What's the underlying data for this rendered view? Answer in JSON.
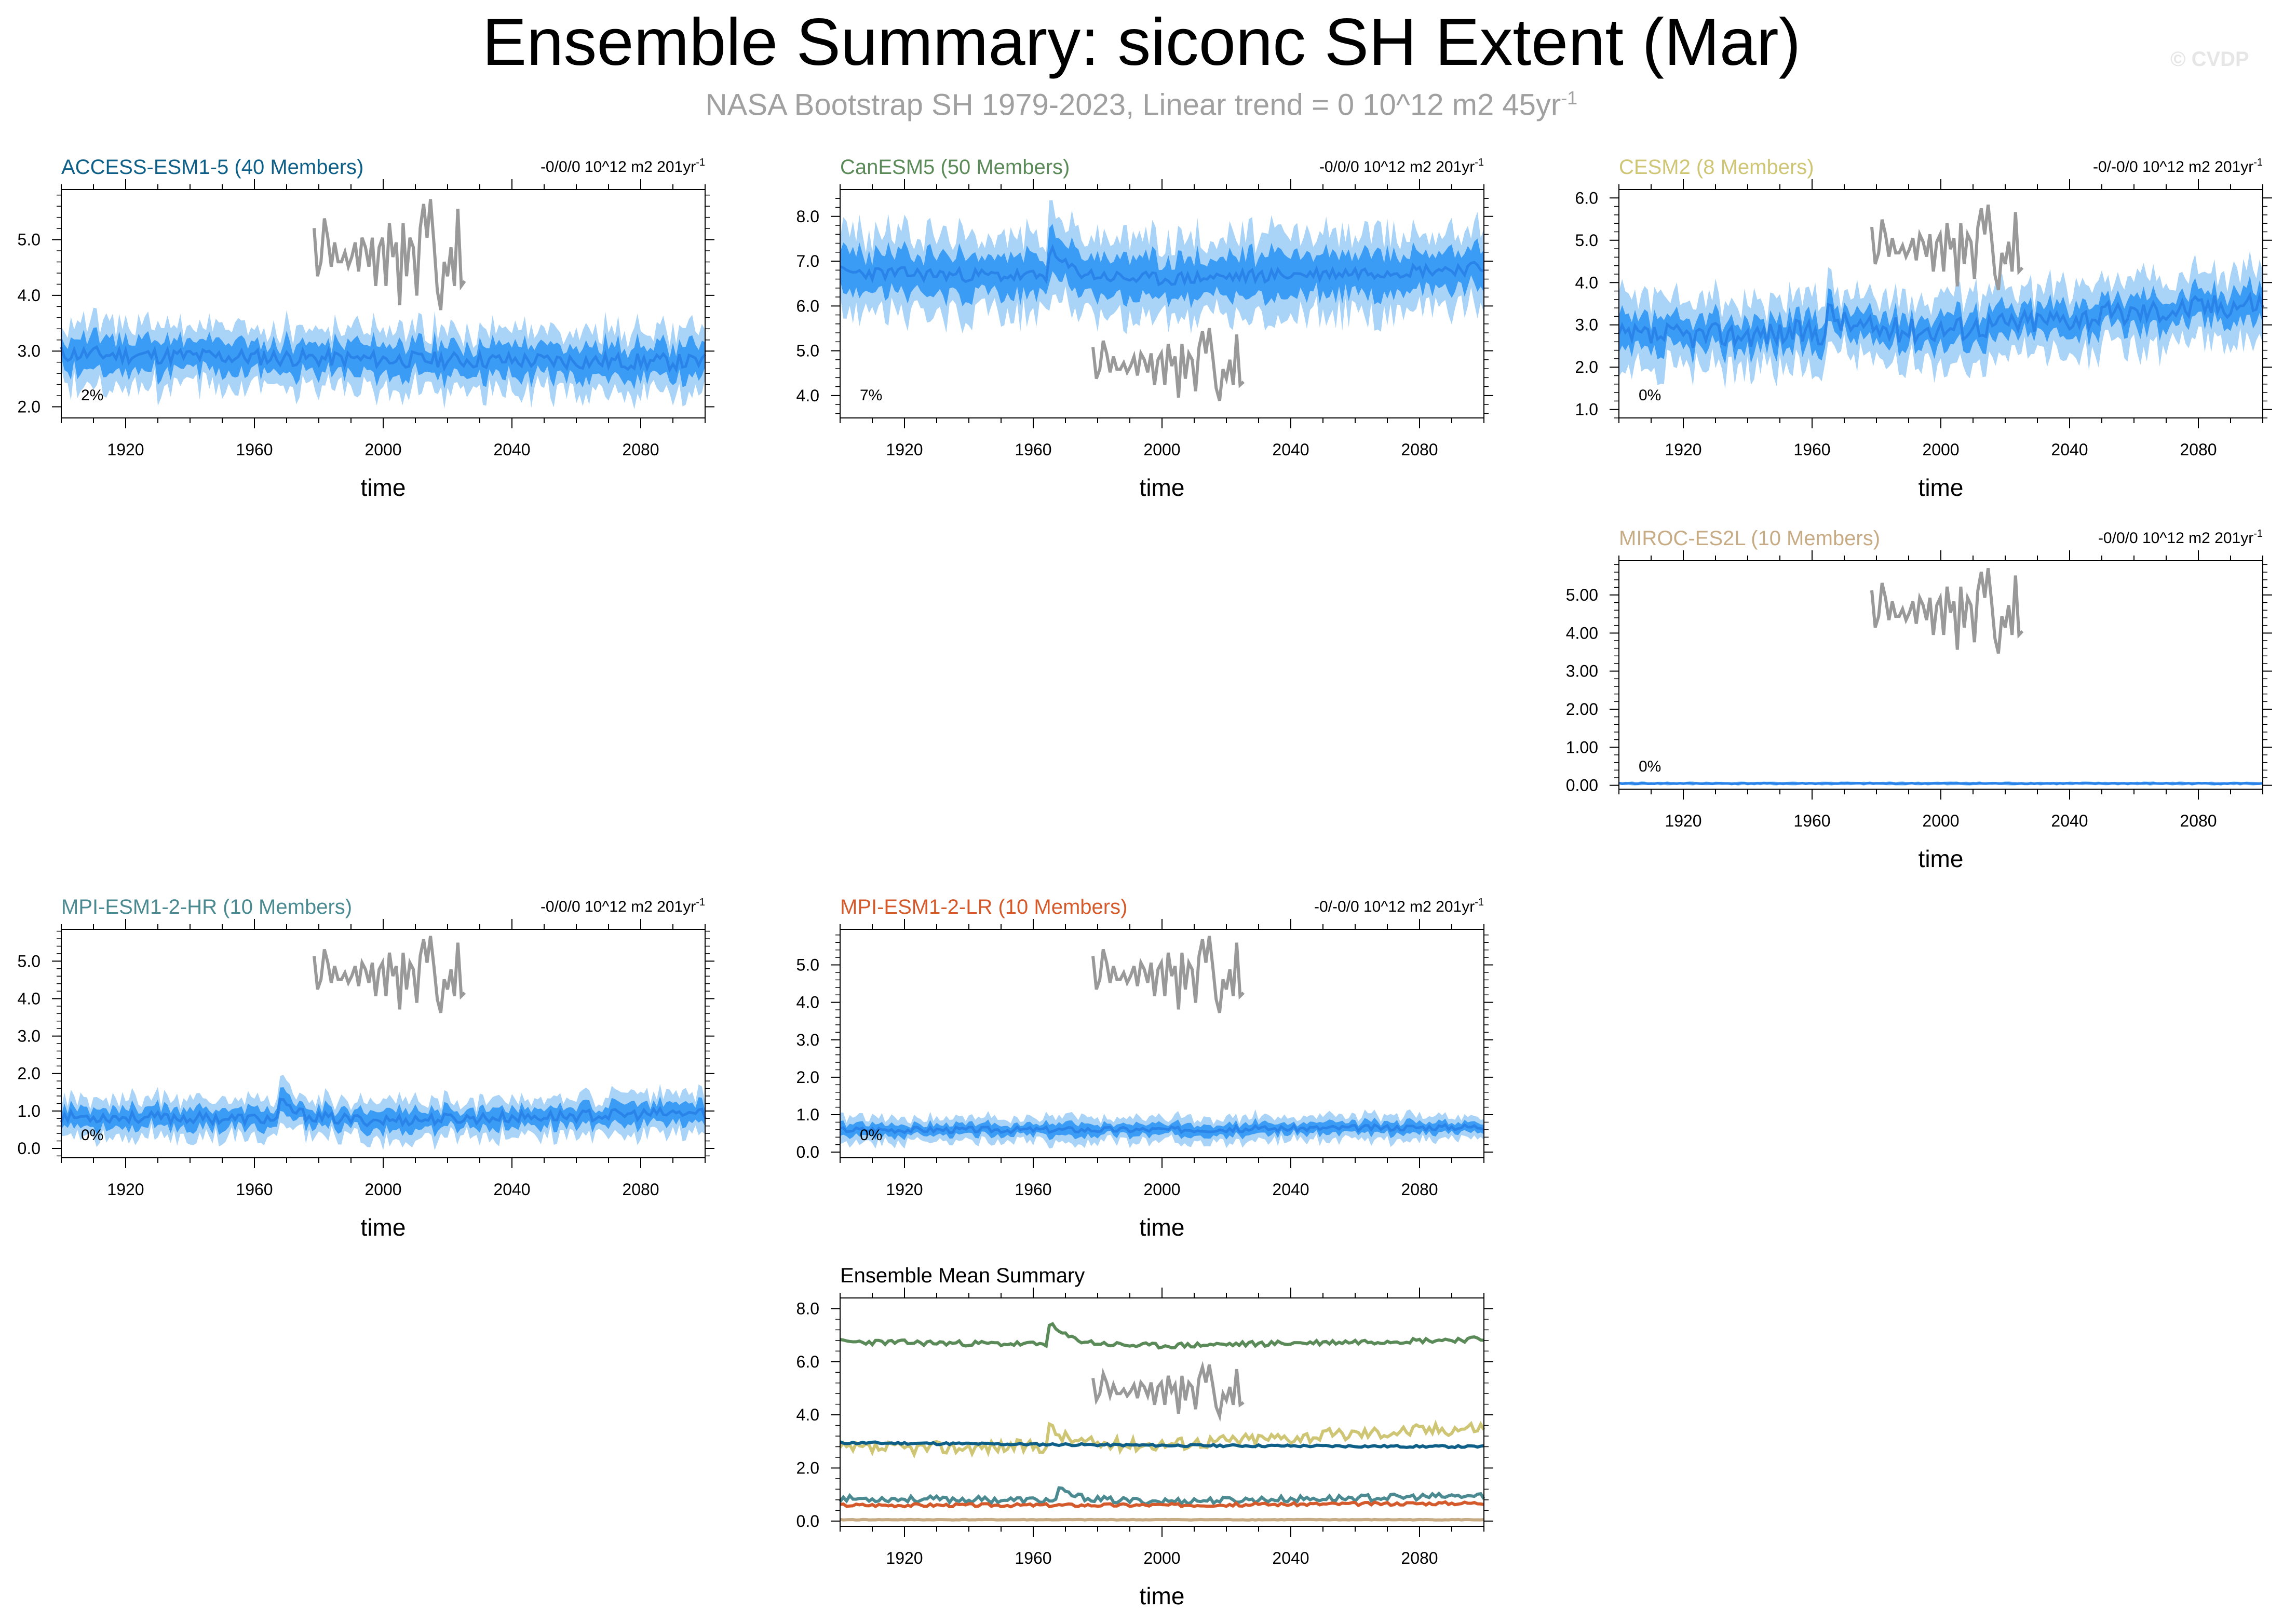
{
  "title": "Ensemble Summary: siconc SH Extent (Mar)",
  "subtitle": "NASA Bootstrap SH 1979-2023, Linear trend = 0 10^12 m2 45yr",
  "subtitle_sup": "-1",
  "copyright": "© CVDP",
  "colors": {
    "outer_band": "#a9d3f7",
    "inner_band": "#3a9cf5",
    "mean_line": "#2a83e8",
    "obs_line": "#999999",
    "access": "#0d5f87",
    "canesm": "#5a8a57",
    "cesm": "#cfc675",
    "miroc": "#c6ab84",
    "mpi_hr": "#4a8a90",
    "mpi_lr": "#d45a2c"
  },
  "chart_data": [
    {
      "type": "area",
      "title": "ACCESS-ESM1-5 (40 Members)",
      "title_color": "#0d5f87",
      "trend_label": "-0/0/0 10^12 m2 201yr",
      "trend_sup": "-1",
      "pct_label": "2%",
      "xlabel": "time",
      "xticks": [
        1920,
        1960,
        2000,
        2040,
        2080
      ],
      "xlim": [
        1900,
        2100
      ],
      "yticks": [
        2.0,
        3.0,
        4.0,
        5.0
      ],
      "ytick_labels": [
        "2.0",
        "3.0",
        "4.0",
        "5.0"
      ],
      "ylim": [
        1.8,
        5.9
      ],
      "series": [
        {
          "name": "ensemble mean",
          "start": 2.95,
          "mid": 2.85,
          "end": 2.8,
          "inner_halfwidth": 0.28,
          "outer_halfwidth": 0.55,
          "noise": 0.15,
          "seed": 11,
          "spike_year": 1965,
          "spike": 0.0
        }
      ]
    },
    {
      "type": "area",
      "title": "CanESM5 (50 Members)",
      "title_color": "#5a8a57",
      "trend_label": "-0/0/0 10^12 m2 201yr",
      "trend_sup": "-1",
      "pct_label": "7%",
      "xlabel": "time",
      "xticks": [
        1920,
        1960,
        2000,
        2040,
        2080
      ],
      "xlim": [
        1900,
        2100
      ],
      "yticks": [
        4.0,
        5.0,
        6.0,
        7.0,
        8.0
      ],
      "ytick_labels": [
        "4.0",
        "5.0",
        "6.0",
        "7.0",
        "8.0"
      ],
      "ylim": [
        3.5,
        8.6
      ],
      "series": [
        {
          "name": "ensemble mean",
          "start": 6.75,
          "mid": 6.6,
          "end": 6.85,
          "inner_halfwidth": 0.45,
          "outer_halfwidth": 0.9,
          "noise": 0.15,
          "seed": 23,
          "spike_year": 1965,
          "spike": 0.6
        }
      ]
    },
    {
      "type": "area",
      "title": "CESM2 (8 Members)",
      "title_color": "#cfc675",
      "trend_label": "-0/-0/0 10^12 m2 201yr",
      "trend_sup": "-1",
      "pct_label": "0%",
      "xlabel": "time",
      "xticks": [
        1920,
        1960,
        2000,
        2040,
        2080
      ],
      "xlim": [
        1900,
        2100
      ],
      "yticks": [
        1.0,
        2.0,
        3.0,
        4.0,
        5.0,
        6.0
      ],
      "ytick_labels": [
        "1.0",
        "2.0",
        "3.0",
        "4.0",
        "5.0",
        "6.0"
      ],
      "ylim": [
        0.8,
        6.2
      ],
      "series": [
        {
          "name": "ensemble mean",
          "start": 2.7,
          "mid": 2.9,
          "end": 3.55,
          "inner_halfwidth": 0.35,
          "outer_halfwidth": 0.8,
          "noise": 0.3,
          "seed": 37,
          "spike_year": 1965,
          "spike": 0.5
        }
      ]
    },
    {
      "type": "area",
      "title": "MIROC-ES2L (10 Members)",
      "title_color": "#c6ab84",
      "trend_label": "-0/0/0 10^12 m2 201yr",
      "trend_sup": "-1",
      "pct_label": "0%",
      "xlabel": "time",
      "xticks": [
        1920,
        1960,
        2000,
        2040,
        2080
      ],
      "xlim": [
        1900,
        2100
      ],
      "yticks": [
        0.0,
        1.0,
        2.0,
        3.0,
        4.0,
        5.0
      ],
      "ytick_labels": [
        "0.00",
        "1.00",
        "2.00",
        "3.00",
        "4.00",
        "5.00"
      ],
      "ylim": [
        -0.1,
        5.9
      ],
      "series": [
        {
          "name": "ensemble mean",
          "start": 0.05,
          "mid": 0.05,
          "end": 0.05,
          "inner_halfwidth": 0.02,
          "outer_halfwidth": 0.04,
          "noise": 0.01,
          "seed": 41,
          "spike_year": 1965,
          "spike": 0.0
        }
      ]
    },
    {
      "type": "area",
      "title": "MPI-ESM1-2-HR (10 Members)",
      "title_color": "#4a8a90",
      "trend_label": "-0/0/0 10^12 m2 201yr",
      "trend_sup": "-1",
      "pct_label": "0%",
      "xlabel": "time",
      "xticks": [
        1920,
        1960,
        2000,
        2040,
        2080
      ],
      "xlim": [
        1900,
        2100
      ],
      "yticks": [
        0.0,
        1.0,
        2.0,
        3.0,
        4.0,
        5.0
      ],
      "ytick_labels": [
        "0.0",
        "1.0",
        "2.0",
        "3.0",
        "4.0",
        "5.0"
      ],
      "ylim": [
        -0.25,
        5.85
      ],
      "series": [
        {
          "name": "ensemble mean",
          "start": 0.85,
          "mid": 0.75,
          "end": 0.95,
          "inner_halfwidth": 0.25,
          "outer_halfwidth": 0.5,
          "noise": 0.15,
          "seed": 53,
          "spike_year": 1968,
          "spike": 0.45
        }
      ]
    },
    {
      "type": "area",
      "title": "MPI-ESM1-2-LR (10 Members)",
      "title_color": "#d45a2c",
      "trend_label": "-0/-0/0 10^12 m2 201yr",
      "trend_sup": "-1",
      "pct_label": "0%",
      "xlabel": "time",
      "xticks": [
        1920,
        1960,
        2000,
        2040,
        2080
      ],
      "xlim": [
        1900,
        2100
      ],
      "yticks": [
        0.0,
        1.0,
        2.0,
        3.0,
        4.0,
        5.0
      ],
      "ytick_labels": [
        "0.0",
        "1.0",
        "2.0",
        "3.0",
        "4.0",
        "5.0"
      ],
      "ylim": [
        -0.15,
        5.95
      ],
      "series": [
        {
          "name": "ensemble mean",
          "start": 0.6,
          "mid": 0.6,
          "end": 0.68,
          "inner_halfwidth": 0.15,
          "outer_halfwidth": 0.32,
          "noise": 0.08,
          "seed": 67,
          "spike_year": 1965,
          "spike": 0.0
        }
      ]
    },
    {
      "type": "line",
      "title": "Ensemble Mean Summary",
      "title_color": "#000000",
      "xlabel": "time",
      "xticks": [
        1920,
        1960,
        2000,
        2040,
        2080
      ],
      "xlim": [
        1900,
        2100
      ],
      "yticks": [
        0.0,
        2.0,
        4.0,
        6.0,
        8.0
      ],
      "ytick_labels": [
        "0.0",
        "2.0",
        "4.0",
        "6.0",
        "8.0"
      ],
      "ylim": [
        -0.2,
        8.4
      ],
      "series": [
        {
          "name": "CanESM5",
          "color": "#5a8a57",
          "start": 6.75,
          "mid": 6.6,
          "end": 6.85,
          "noise": 0.1,
          "seed": 23,
          "spike_year": 1965,
          "spike": 0.8
        },
        {
          "name": "CESM2",
          "color": "#cfc675",
          "start": 2.7,
          "mid": 2.9,
          "end": 3.55,
          "noise": 0.25,
          "seed": 37,
          "spike_year": 1965,
          "spike": 0.7
        },
        {
          "name": "ACCESS-ESM1-5",
          "color": "#0d5f87",
          "start": 2.95,
          "mid": 2.85,
          "end": 2.8,
          "noise": 0.04,
          "seed": 11,
          "spike_year": 1965,
          "spike": 0.0
        },
        {
          "name": "MPI-ESM1-2-HR",
          "color": "#4a8a90",
          "start": 0.85,
          "mid": 0.75,
          "end": 0.95,
          "noise": 0.12,
          "seed": 53,
          "spike_year": 1968,
          "spike": 0.4
        },
        {
          "name": "MPI-ESM1-2-LR",
          "color": "#d45a2c",
          "start": 0.6,
          "mid": 0.6,
          "end": 0.68,
          "noise": 0.06,
          "seed": 67,
          "spike_year": 1965,
          "spike": 0.0
        },
        {
          "name": "MIROC-ES2L",
          "color": "#c6ab84",
          "start": 0.05,
          "mid": 0.05,
          "end": 0.05,
          "noise": 0.01,
          "seed": 41,
          "spike_year": 1965,
          "spike": 0.0
        }
      ]
    }
  ],
  "observation": {
    "name": "NASA Bootstrap SH",
    "years": [
      1979,
      1980,
      1981,
      1982,
      1983,
      1984,
      1985,
      1986,
      1987,
      1988,
      1989,
      1990,
      1991,
      1992,
      1993,
      1994,
      1995,
      1996,
      1997,
      1998,
      1999,
      2000,
      2001,
      2002,
      2003,
      2004,
      2005,
      2006,
      2007,
      2008,
      2009,
      2010,
      2011,
      2012,
      2013,
      2014,
      2015,
      2016,
      2017,
      2018,
      2019,
      2020,
      2021,
      2022,
      2023
    ],
    "values": [
      5.2,
      4.2,
      4.5,
      5.4,
      5.0,
      4.4,
      4.9,
      4.5,
      4.5,
      4.7,
      4.4,
      4.6,
      4.9,
      4.3,
      5.0,
      4.8,
      4.4,
      5.0,
      4.0,
      4.8,
      5.0,
      4.0,
      5.3,
      4.6,
      4.9,
      3.6,
      5.3,
      4.2,
      5.0,
      4.8,
      3.8,
      5.2,
      5.7,
      5.0,
      5.8,
      4.9,
      3.9,
      3.5,
      4.5,
      4.2,
      4.8,
      4.0,
      5.6,
      4.0,
      4.1
    ]
  }
}
